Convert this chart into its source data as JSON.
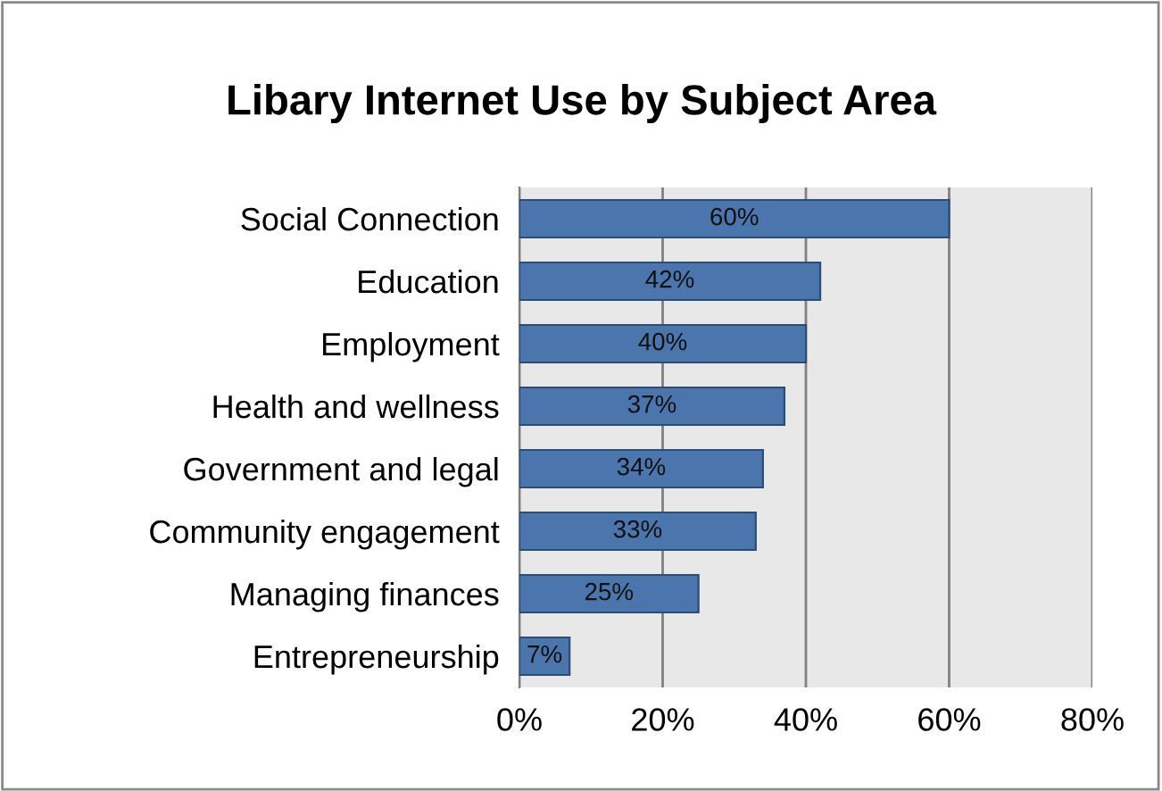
{
  "chart_data": {
    "type": "bar",
    "orientation": "horizontal",
    "title": "Libary Internet Use by Subject Area",
    "categories": [
      "Social Connection",
      "Education",
      "Employment",
      "Health and wellness",
      "Government and legal",
      "Community engagement",
      "Managing finances",
      "Entrepreneurship"
    ],
    "values": [
      60,
      42,
      40,
      37,
      34,
      33,
      25,
      7
    ],
    "value_labels": [
      "60%",
      "42%",
      "40%",
      "37%",
      "34%",
      "33%",
      "25%",
      "7%"
    ],
    "color": "#4a76ad",
    "xlim": [
      0,
      80
    ],
    "xticks": [
      {
        "value": 0,
        "label": "0%"
      },
      {
        "value": 20,
        "label": "20%"
      },
      {
        "value": 40,
        "label": "40%"
      },
      {
        "value": 60,
        "label": "60%"
      },
      {
        "value": 80,
        "label": "80%"
      }
    ],
    "grid": "x",
    "legend": false
  }
}
